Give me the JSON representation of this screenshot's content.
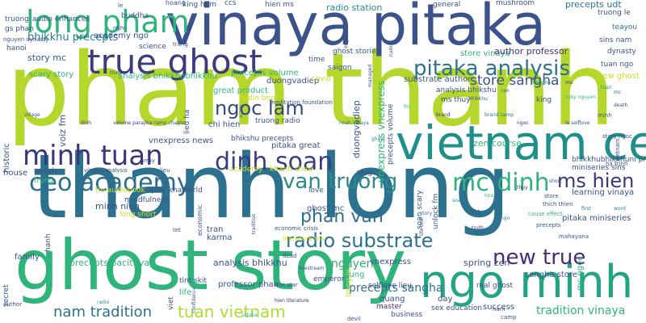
{
  "palette": {
    "lime": "#a8d52f",
    "green": "#2fb47c",
    "teal": "#21918c",
    "blue": "#2c728e",
    "indigo": "#3b528b",
    "purple": "#472d7b",
    "dark": "#440154",
    "yellow": "#c8e020"
  },
  "words": [
    "pham thanh",
    "thanh long",
    "ghost story",
    "vinaya pitaka",
    "true ghost",
    "vietnam ceo",
    "ngo minh",
    "long pham",
    "minh tuan",
    "ceo academy",
    "dinh soan",
    "mc dinh",
    "pitaka analysis",
    "ngoc lam",
    "van truong",
    "ms hien",
    "radio substrate",
    "phan van",
    "new true",
    "tuan vietnam",
    "nam tradition",
    "tradition vinaya",
    "store sangha",
    "precepts sangha",
    "nguyen",
    "bhikkhu precepts",
    "store vinaya",
    "story mc",
    "academy ngo",
    "author professor",
    "radio station",
    "precepts udt",
    "mushroom",
    "hien ms",
    "king ham",
    "buddha",
    "hoang",
    "ccs",
    "general",
    "truong le",
    "teayou",
    "sins nam",
    "tuan ngo",
    "new ghost",
    "substrate author",
    "analysis bhikshu",
    "dynasty",
    "ms thuy",
    "king",
    "vnexpress vnexpress",
    "duongvadiep",
    "precepts volume",
    "chi hien",
    "great product",
    "bhikshu precepts",
    "pitaka great",
    "truong radio",
    "vnexpress news",
    "voiz fm",
    "historic",
    "scary story",
    "analysis bhikkhubhikkhu",
    "science",
    "ghost stories",
    "saigon",
    "time",
    "covid",
    "lieu ha",
    "hanoi",
    "zen course",
    "learning vinaya",
    "bhikkhubhikkhuni precepts",
    "miniseries sins",
    "vlog",
    "love",
    "ghost mc",
    "soan scary",
    "unlock fm",
    "ruby nguyen",
    "minh nien",
    "long short",
    "quoc khanh",
    "world",
    "fm audiobook",
    "house",
    "people",
    "trung",
    "gs phan",
    "hanh",
    "tran",
    "karma",
    "family",
    "secret",
    "precepts pacittiya",
    "analysis bhikkhu",
    "professor phan",
    "life",
    "tlnt skit",
    "viet",
    "hung",
    "vnexpress",
    "trong le",
    "spring zen",
    "sangha store",
    "real ghost",
    "selflove lieu",
    "quang",
    "emperor",
    "day",
    "master",
    "sex education",
    "business",
    "success",
    "mc ngoc",
    "pitaka miniseries",
    "vu",
    "tet",
    "tuan",
    "truong",
    "le",
    "nghi",
    "brand camp",
    "mindfulness",
    "academy",
    "khanh show",
    "ha trinh",
    "story ngoc",
    "trang",
    "minh",
    "ngoc",
    "le selflove",
    "store",
    "thich thien",
    "vietnam",
    "economic",
    "death",
    "army",
    "vinaya analysis",
    "lieu",
    "cause effect",
    "meditation foundation",
    "literature ms",
    "economic crisis",
    "one star",
    "dead",
    "third",
    "village",
    "audio enhances",
    "managed",
    "truth",
    "nam",
    "english",
    "ngo",
    "pitaka",
    "hien literature",
    "livestream",
    "audio book",
    "radio",
    "confidence",
    "tradition",
    "precepts",
    "mahayana",
    "nguyen dynasty",
    "life one",
    "dinh",
    "camp",
    "ham",
    "author",
    "devil",
    "volume parajika",
    "camp chapter",
    "noah vinaya",
    "ghost",
    "fm",
    "brand",
    "bhikkhu",
    "ceo",
    "sangha",
    "scary",
    "ms",
    "mc",
    "story",
    "soan",
    "hoa",
    "thuy",
    "short",
    "first",
    "word"
  ]
}
